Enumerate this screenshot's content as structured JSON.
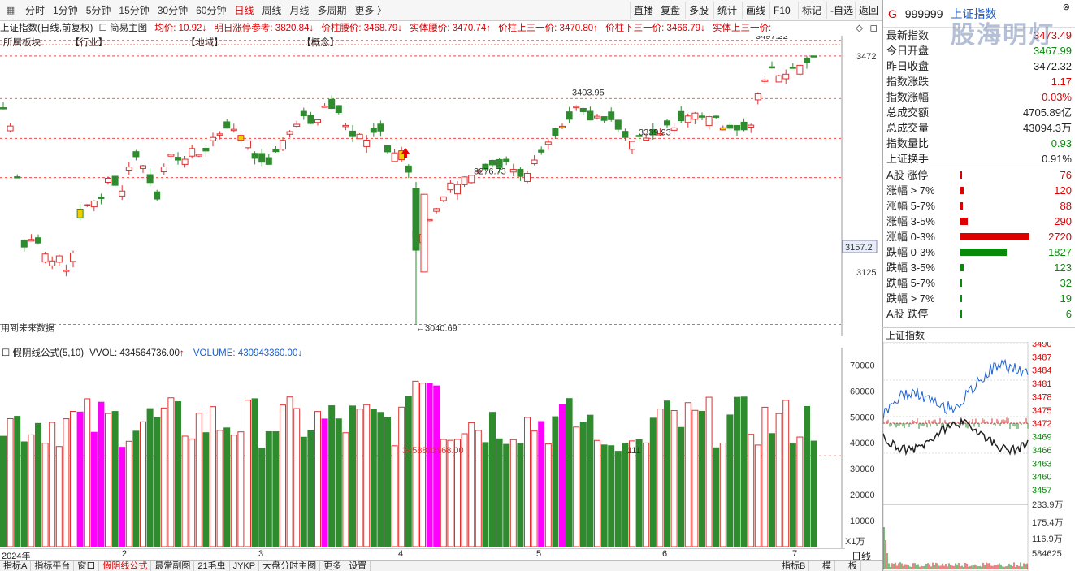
{
  "toolbar": {
    "periods": [
      "分时",
      "1分钟",
      "5分钟",
      "15分钟",
      "30分钟",
      "60分钟",
      "日线",
      "周线",
      "月线",
      "多周期",
      "更多 〉"
    ],
    "active_index": 6,
    "buttons": [
      "直播",
      "复盘",
      "多股",
      "统计",
      "画线",
      "F10",
      "标记",
      "-自选",
      "返回"
    ]
  },
  "header": {
    "title": "上证指数(日线,前复权)",
    "main_chart": "简易主图",
    "avg": "均价: 10.92",
    "limit_ref": "明日涨停参考: 3820.84",
    "waist": "价柱腰价: 3468.79",
    "body_waist": "实体腰价: 3470.74",
    "upper_third": "价柱上三一价: 3470.80",
    "lower_third": "价柱下三一价: 3466.79",
    "body_upper": "实体上三一价: ",
    "sector_label": "所属板块:",
    "industry": "【行业】:",
    "region": "【地域】:",
    "concept": "【概念】:"
  },
  "price_axis": {
    "labels": [
      "3472",
      "3157.2",
      "3125"
    ]
  },
  "annotations": {
    "high": "3497.22",
    "p1": "3403.95",
    "p2": "3276.73",
    "p3": "3339.93",
    "low": "←3040.69",
    "future_note": "用到未来数据"
  },
  "volume": {
    "header": "假阴线公式(5,10)",
    "vvol": "VVOL: 434564736.00",
    "volume": "VOLUME: 430943360.00",
    "axis": [
      "70000",
      "60000",
      "50000",
      "40000",
      "30000",
      "20000",
      "10000"
    ],
    "unit": "X1万",
    "marker": "3458831168.00",
    "marker2": "111"
  },
  "dates": {
    "year": "2024年",
    "months": [
      "2",
      "3",
      "4",
      "5",
      "6",
      "7"
    ]
  },
  "tabs": [
    "指标A",
    "指标平台",
    "窗口",
    "假阴线公式",
    "最常副图",
    "21毛虫",
    "JYKP",
    "大盘分时主图",
    "更多",
    "设置"
  ],
  "bottom_right": [
    "指标B",
    "模",
    "板"
  ],
  "day_label": "日线",
  "quote": {
    "code": "999999",
    "name": "上证指数",
    "prefix": "G",
    "rows": [
      {
        "label": "最新指数",
        "value": "3473.49",
        "color": "#d00"
      },
      {
        "label": "今日开盘",
        "value": "3467.99",
        "color": "#0a8a0a"
      },
      {
        "label": "昨日收盘",
        "value": "3472.32",
        "color": "#222"
      },
      {
        "label": "指数涨跌",
        "value": "1.17",
        "color": "#d00"
      },
      {
        "label": "指数涨幅",
        "value": "0.03%",
        "color": "#d00"
      },
      {
        "label": "总成交额",
        "value": "4705.89亿",
        "color": "#222"
      },
      {
        "label": "总成交量",
        "value": "43094.3万",
        "color": "#222"
      },
      {
        "label": "指数量比",
        "value": "0.93",
        "color": "#0a8a0a"
      },
      {
        "label": "上证换手",
        "value": "0.91%",
        "color": "#222"
      }
    ],
    "breadth": [
      {
        "label": "A股 涨停",
        "value": "76",
        "color": "#d00",
        "frac": 0.028
      },
      {
        "label": "涨幅 > 7%",
        "value": "120",
        "color": "#d00",
        "frac": 0.044
      },
      {
        "label": "涨幅 5-7%",
        "value": "88",
        "color": "#d00",
        "frac": 0.032
      },
      {
        "label": "涨幅 3-5%",
        "value": "290",
        "color": "#d00",
        "frac": 0.107
      },
      {
        "label": "涨幅 0-3%",
        "value": "2720",
        "color": "#d00",
        "frac": 1.0
      },
      {
        "label": "跌幅 0-3%",
        "value": "1827",
        "color": "#0a8a0a",
        "frac": 0.672
      },
      {
        "label": "跌幅 3-5%",
        "value": "123",
        "color": "#0a8a0a",
        "frac": 0.045
      },
      {
        "label": "跌幅 5-7%",
        "value": "32",
        "color": "#0a8a0a",
        "frac": 0.012
      },
      {
        "label": "跌幅 > 7%",
        "value": "19",
        "color": "#0a8a0a",
        "frac": 0.007
      },
      {
        "label": "A股 跌停",
        "value": "6",
        "color": "#0a8a0a",
        "frac": 0.002
      }
    ],
    "mini_title": "上证指数",
    "mini_axis": [
      "3490",
      "3487",
      "3484",
      "3481",
      "3478",
      "3475",
      "3472",
      "3469",
      "3466",
      "3463",
      "3460",
      "3457"
    ],
    "mini_vol_axis": [
      "233.9万",
      "175.4万",
      "116.9万",
      "584625"
    ],
    "watermark": "股海明灯"
  },
  "colors": {
    "up": "#e03030",
    "down": "#2e8b2e",
    "accent": "#d00",
    "magenta": "#ff00ff",
    "yellow": "#f0d000"
  }
}
